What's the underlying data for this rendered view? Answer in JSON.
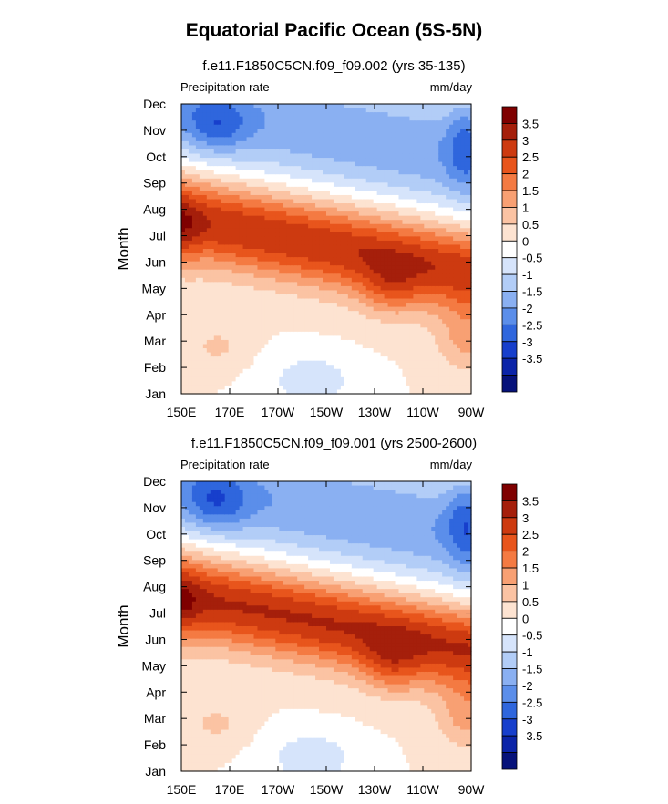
{
  "main_title": "Equatorial Pacific Ocean (5S-5N)",
  "chart_data": [
    {
      "type": "heatmap",
      "title": "f.e11.F1850C5CN.f09_f09.002 (yrs 35-135)",
      "left_label": "Precipitation rate",
      "right_label": "mm/day",
      "ylabel": "Month",
      "x_ticks": [
        "150E",
        "170E",
        "170W",
        "150W",
        "130W",
        "110W",
        "90W"
      ],
      "y_ticks": [
        "Jan",
        "Feb",
        "Mar",
        "Apr",
        "May",
        "Jun",
        "Jul",
        "Aug",
        "Sep",
        "Oct",
        "Nov",
        "Dec"
      ],
      "colorbar_labels": [
        "3.5",
        "3",
        "2.5",
        "2",
        "1.5",
        "1",
        "0.5",
        "0",
        "-0.5",
        "-1",
        "-1.5",
        "-2",
        "-2.5",
        "-3",
        "-3.5"
      ],
      "colorbar_colors": [
        "#7f0000",
        "#a51f0b",
        "#cd3a10",
        "#e8551c",
        "#f47a42",
        "#f8a073",
        "#fbc3a3",
        "#fde3d1",
        "#ffffff",
        "#d6e4fb",
        "#b2cdf7",
        "#8ab0f2",
        "#5b8eea",
        "#2f66dd",
        "#173fcc",
        "#0b24a8",
        "#06127a"
      ],
      "colorbar_ends": [
        "-3.5 and below",
        "3.5 and above"
      ]
    },
    {
      "type": "heatmap",
      "title": "f.e11.F1850C5CN.f09_f09.001 (yrs 2500-2600)",
      "left_label": "Precipitation rate",
      "right_label": "mm/day",
      "ylabel": "Month",
      "x_ticks": [
        "150E",
        "170E",
        "170W",
        "150W",
        "130W",
        "110W",
        "90W"
      ],
      "y_ticks": [
        "Jan",
        "Feb",
        "Mar",
        "Apr",
        "May",
        "Jun",
        "Jul",
        "Aug",
        "Sep",
        "Oct",
        "Nov",
        "Dec"
      ],
      "colorbar_labels": [
        "3.5",
        "3",
        "2.5",
        "2",
        "1.5",
        "1",
        "0.5",
        "0",
        "-0.5",
        "-1",
        "-1.5",
        "-2",
        "-2.5",
        "-3",
        "-3.5"
      ],
      "colorbar_colors": [
        "#7f0000",
        "#a51f0b",
        "#cd3a10",
        "#e8551c",
        "#f47a42",
        "#f8a073",
        "#fbc3a3",
        "#fde3d1",
        "#ffffff",
        "#d6e4fb",
        "#b2cdf7",
        "#8ab0f2",
        "#5b8eea",
        "#2f66dd",
        "#173fcc",
        "#0b24a8",
        "#06127a"
      ],
      "colorbar_ends": [
        "-3.5 and below",
        "3.5 and above"
      ]
    }
  ]
}
